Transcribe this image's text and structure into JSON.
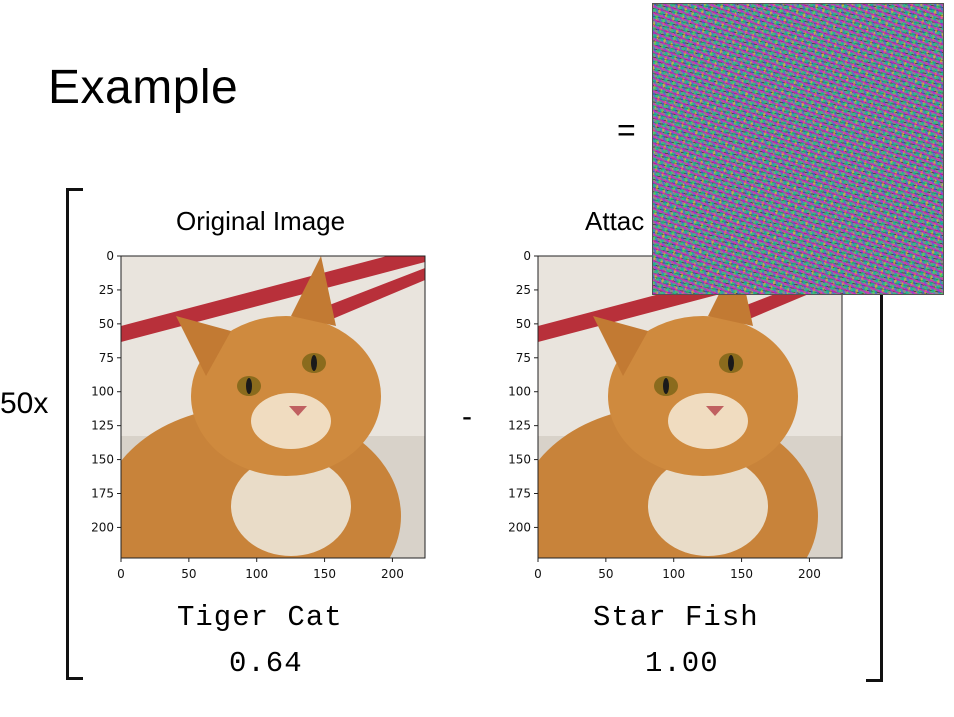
{
  "slide": {
    "title": "Example"
  },
  "operators": {
    "multiplier": "50x",
    "minus": "-",
    "equals": "="
  },
  "panels": [
    {
      "title": "Original Image",
      "class_label": "Tiger Cat",
      "confidence": "0.64"
    },
    {
      "title": "Attac",
      "class_label": "Star Fish",
      "confidence": "1.00"
    }
  ],
  "axes": {
    "y_ticks": [
      "0",
      "25",
      "50",
      "75",
      "100",
      "125",
      "150",
      "175",
      "200"
    ],
    "x_ticks": [
      "0",
      "50",
      "100",
      "150",
      "200"
    ]
  },
  "image": {
    "subject": "orange tabby cat photo"
  },
  "noise": {
    "description": "adversarial perturbation noise pattern"
  },
  "colors": {
    "text": "#000000",
    "cat_fur": "#c8833a",
    "stripe": "#b8303a"
  }
}
